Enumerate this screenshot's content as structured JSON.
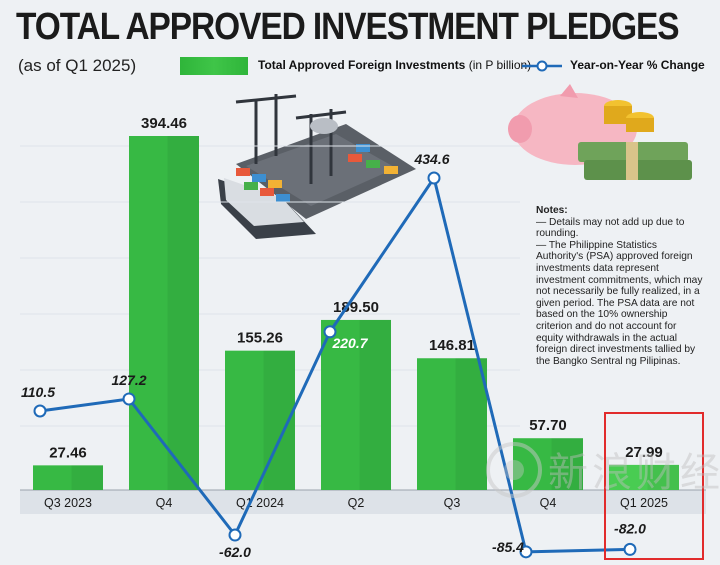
{
  "header": {
    "title": "TOTAL APPROVED INVESTMENT PLEDGES",
    "subtitle": "(as of Q1 2025)"
  },
  "legend": {
    "bars_label": "Total Approved Foreign Investments",
    "bars_unit": "(in P billion)",
    "line_label": "Year-on-Year % Change"
  },
  "notes": {
    "heading": "Notes:",
    "items": [
      "— Details may not add up due to rounding.",
      "— The Philippine Statistics Authority's (PSA) approved foreign investments data represent investment commitments, which may not necessarily be fully realized, in a given period. The PSA data are not based on the 10% ownership criterion and do not account for equity withdrawals in the actual foreign direct investments tallied by the Bangko Sentral ng Pilipinas."
    ]
  },
  "watermark": {
    "text": "新浪财经"
  },
  "colors": {
    "bar": "#37b944",
    "bar_highlight": "#49cc52",
    "line": "#1f6ab8",
    "marker_fill": "#ffffff",
    "highlight_box": "#e12b2b",
    "text": "#1b1b1b"
  },
  "chart_data": {
    "type": "bar",
    "categories": [
      "Q3 2023",
      "Q4",
      "Q1 2024",
      "Q2",
      "Q3",
      "Q4",
      "Q1 2025"
    ],
    "series": [
      {
        "name": "Total Approved Foreign Investments",
        "type": "bar",
        "values": [
          27.46,
          394.46,
          155.26,
          189.5,
          146.81,
          57.7,
          27.99
        ],
        "labels": [
          "27.46",
          "394.46",
          "155.26",
          "189.50",
          "146.81",
          "57.70",
          "27.99"
        ]
      },
      {
        "name": "Year-on-Year % Change",
        "type": "line",
        "values": [
          110.5,
          127.2,
          -62.0,
          220.7,
          434.6,
          -85.4,
          -82.0
        ],
        "labels": [
          "110.5",
          "127.2",
          "-62.0",
          "220.7",
          "434.6",
          "-85.4",
          "-82.0"
        ]
      }
    ],
    "highlighted_category": "Q1 2025"
  }
}
